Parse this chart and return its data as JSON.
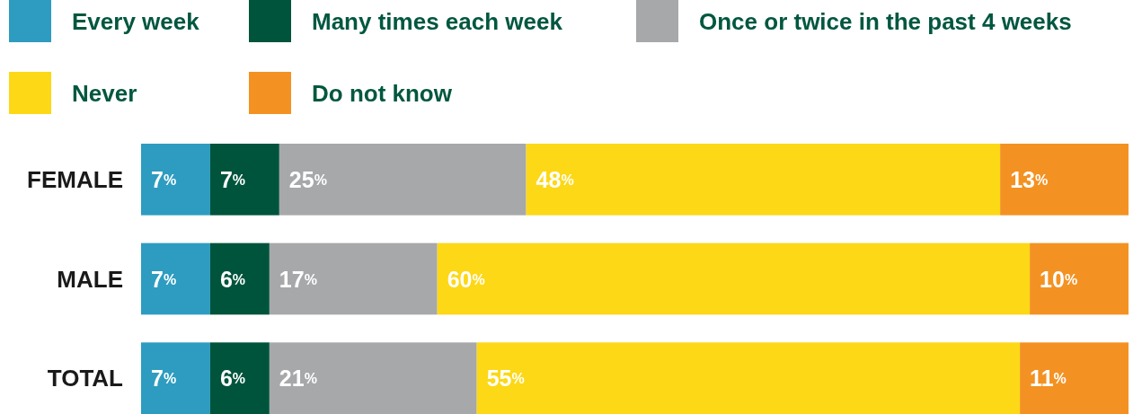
{
  "chart_data": {
    "type": "bar",
    "orientation": "horizontal",
    "stacked": true,
    "legend": "top",
    "categories": [
      "FEMALE",
      "MALE",
      "TOTAL"
    ],
    "series": [
      {
        "name": "Every week",
        "color": "#2e9cc0",
        "values": [
          7,
          7,
          7
        ],
        "value_labels": [
          "7%",
          "7%",
          "7%"
        ]
      },
      {
        "name": "Many times each week",
        "color": "#00543c",
        "values": [
          7,
          6,
          6
        ],
        "value_labels": [
          "7%",
          "6%",
          "6%"
        ]
      },
      {
        "name": "Once or twice in the past 4 weeks",
        "color": "#a7a8aa",
        "values": [
          25,
          17,
          21
        ],
        "value_labels": [
          "25%",
          "17%",
          "21%"
        ]
      },
      {
        "name": "Never",
        "color": "#fcd816",
        "values": [
          48,
          60,
          55
        ],
        "value_labels": [
          "48%",
          "60%",
          "55%"
        ]
      },
      {
        "name": "Do not know",
        "color": "#f39222",
        "values": [
          13,
          10,
          11
        ],
        "value_labels": [
          "13%",
          "10%",
          "11%"
        ]
      }
    ]
  }
}
